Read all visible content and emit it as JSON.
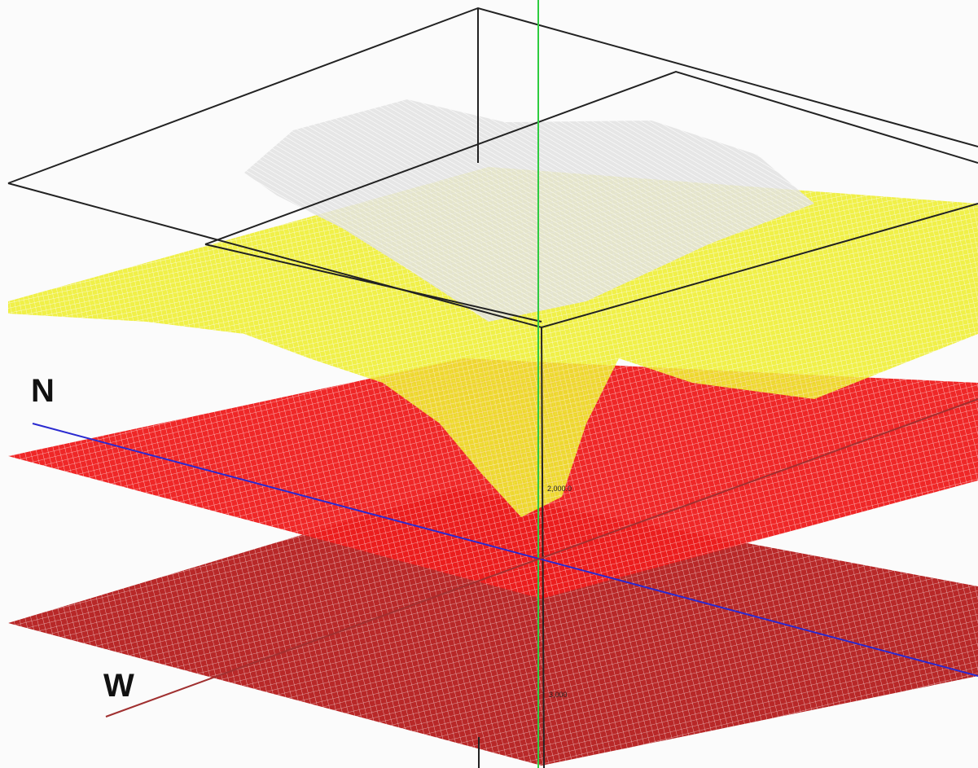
{
  "labels": {
    "north": "N",
    "west": "W",
    "depth_upper": "2,000.0",
    "depth_lower": "3,000"
  }
}
